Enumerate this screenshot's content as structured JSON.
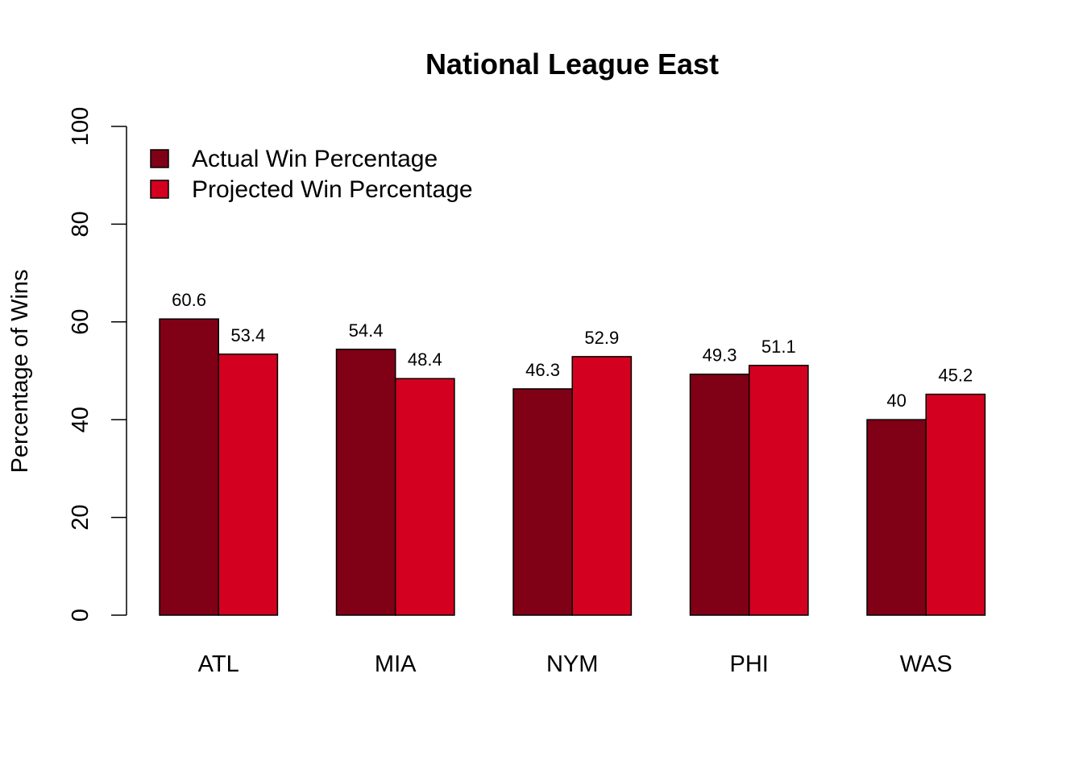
{
  "chart_data": {
    "type": "bar",
    "title": "National League East",
    "xlabel": "",
    "ylabel": "Percentage of Wins",
    "ylim": [
      0,
      100
    ],
    "yticks": [
      "0",
      "20",
      "40",
      "60",
      "80",
      "100"
    ],
    "categories": [
      "ATL",
      "MIA",
      "NYM",
      "PHI",
      "WAS"
    ],
    "series": [
      {
        "name": "Actual Win Percentage",
        "color": "#800016",
        "values": [
          60.6,
          54.4,
          46.3,
          49.3,
          40
        ],
        "labels": [
          "60.6",
          "54.4",
          "46.3",
          "49.3",
          "40"
        ]
      },
      {
        "name": "Projected Win Percentage",
        "color": "#d3001f",
        "values": [
          53.4,
          48.4,
          52.9,
          51.1,
          45.2
        ],
        "labels": [
          "53.4",
          "48.4",
          "52.9",
          "51.1",
          "45.2"
        ]
      }
    ],
    "legend": "top-left",
    "grid": false
  }
}
